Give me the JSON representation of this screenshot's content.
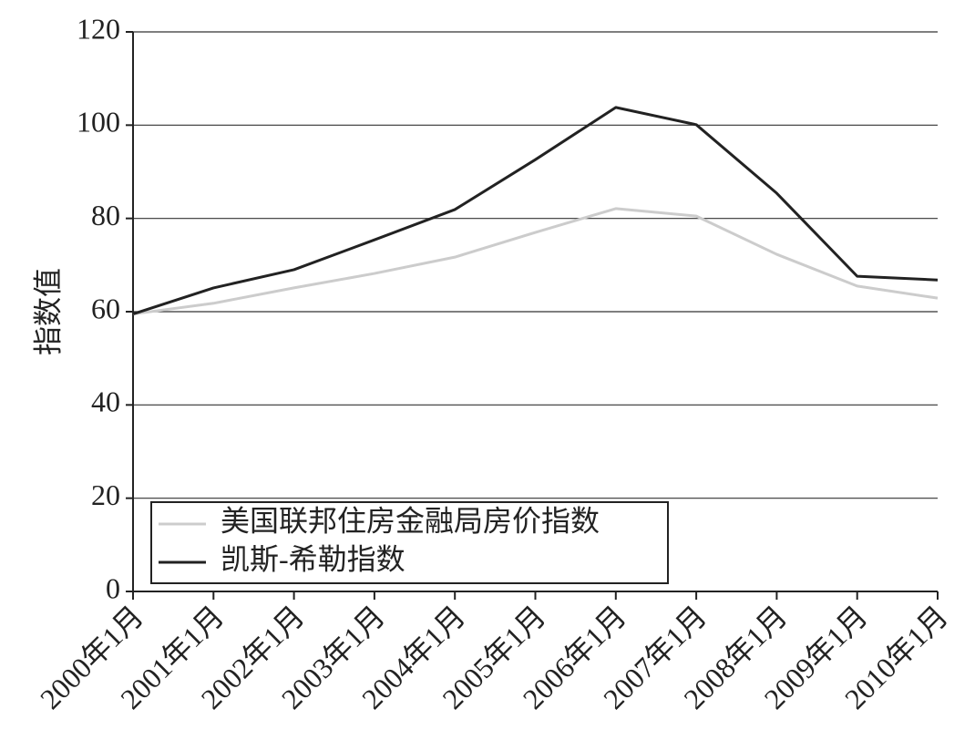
{
  "chart_data": {
    "type": "line",
    "categories": [
      "2000年1月",
      "2001年1月",
      "2002年1月",
      "2003年1月",
      "2004年1月",
      "2005年1月",
      "2006年1月",
      "2007年1月",
      "2008年1月",
      "2009年1月",
      "2010年1月"
    ],
    "y_label": "指数值",
    "series": [
      {
        "name": "美国联邦住房金融局房价指数",
        "color": "#cccccc",
        "values": [
          59.5,
          61.8,
          65.1,
          68.2,
          71.7,
          77,
          82.1,
          80.5,
          72.3,
          65.5,
          62.9
        ]
      },
      {
        "name": "凯斯-希勒指数",
        "color": "#222222",
        "values": [
          59.5,
          65.1,
          69,
          75.4,
          81.9,
          92.6,
          103.8,
          100.1,
          85.4,
          67.6,
          66.8
        ]
      }
    ],
    "ylim": [
      0,
      120
    ],
    "yticks": [
      0,
      20,
      40,
      60,
      80,
      100,
      120
    ],
    "grid": true,
    "legend": "lower left"
  }
}
